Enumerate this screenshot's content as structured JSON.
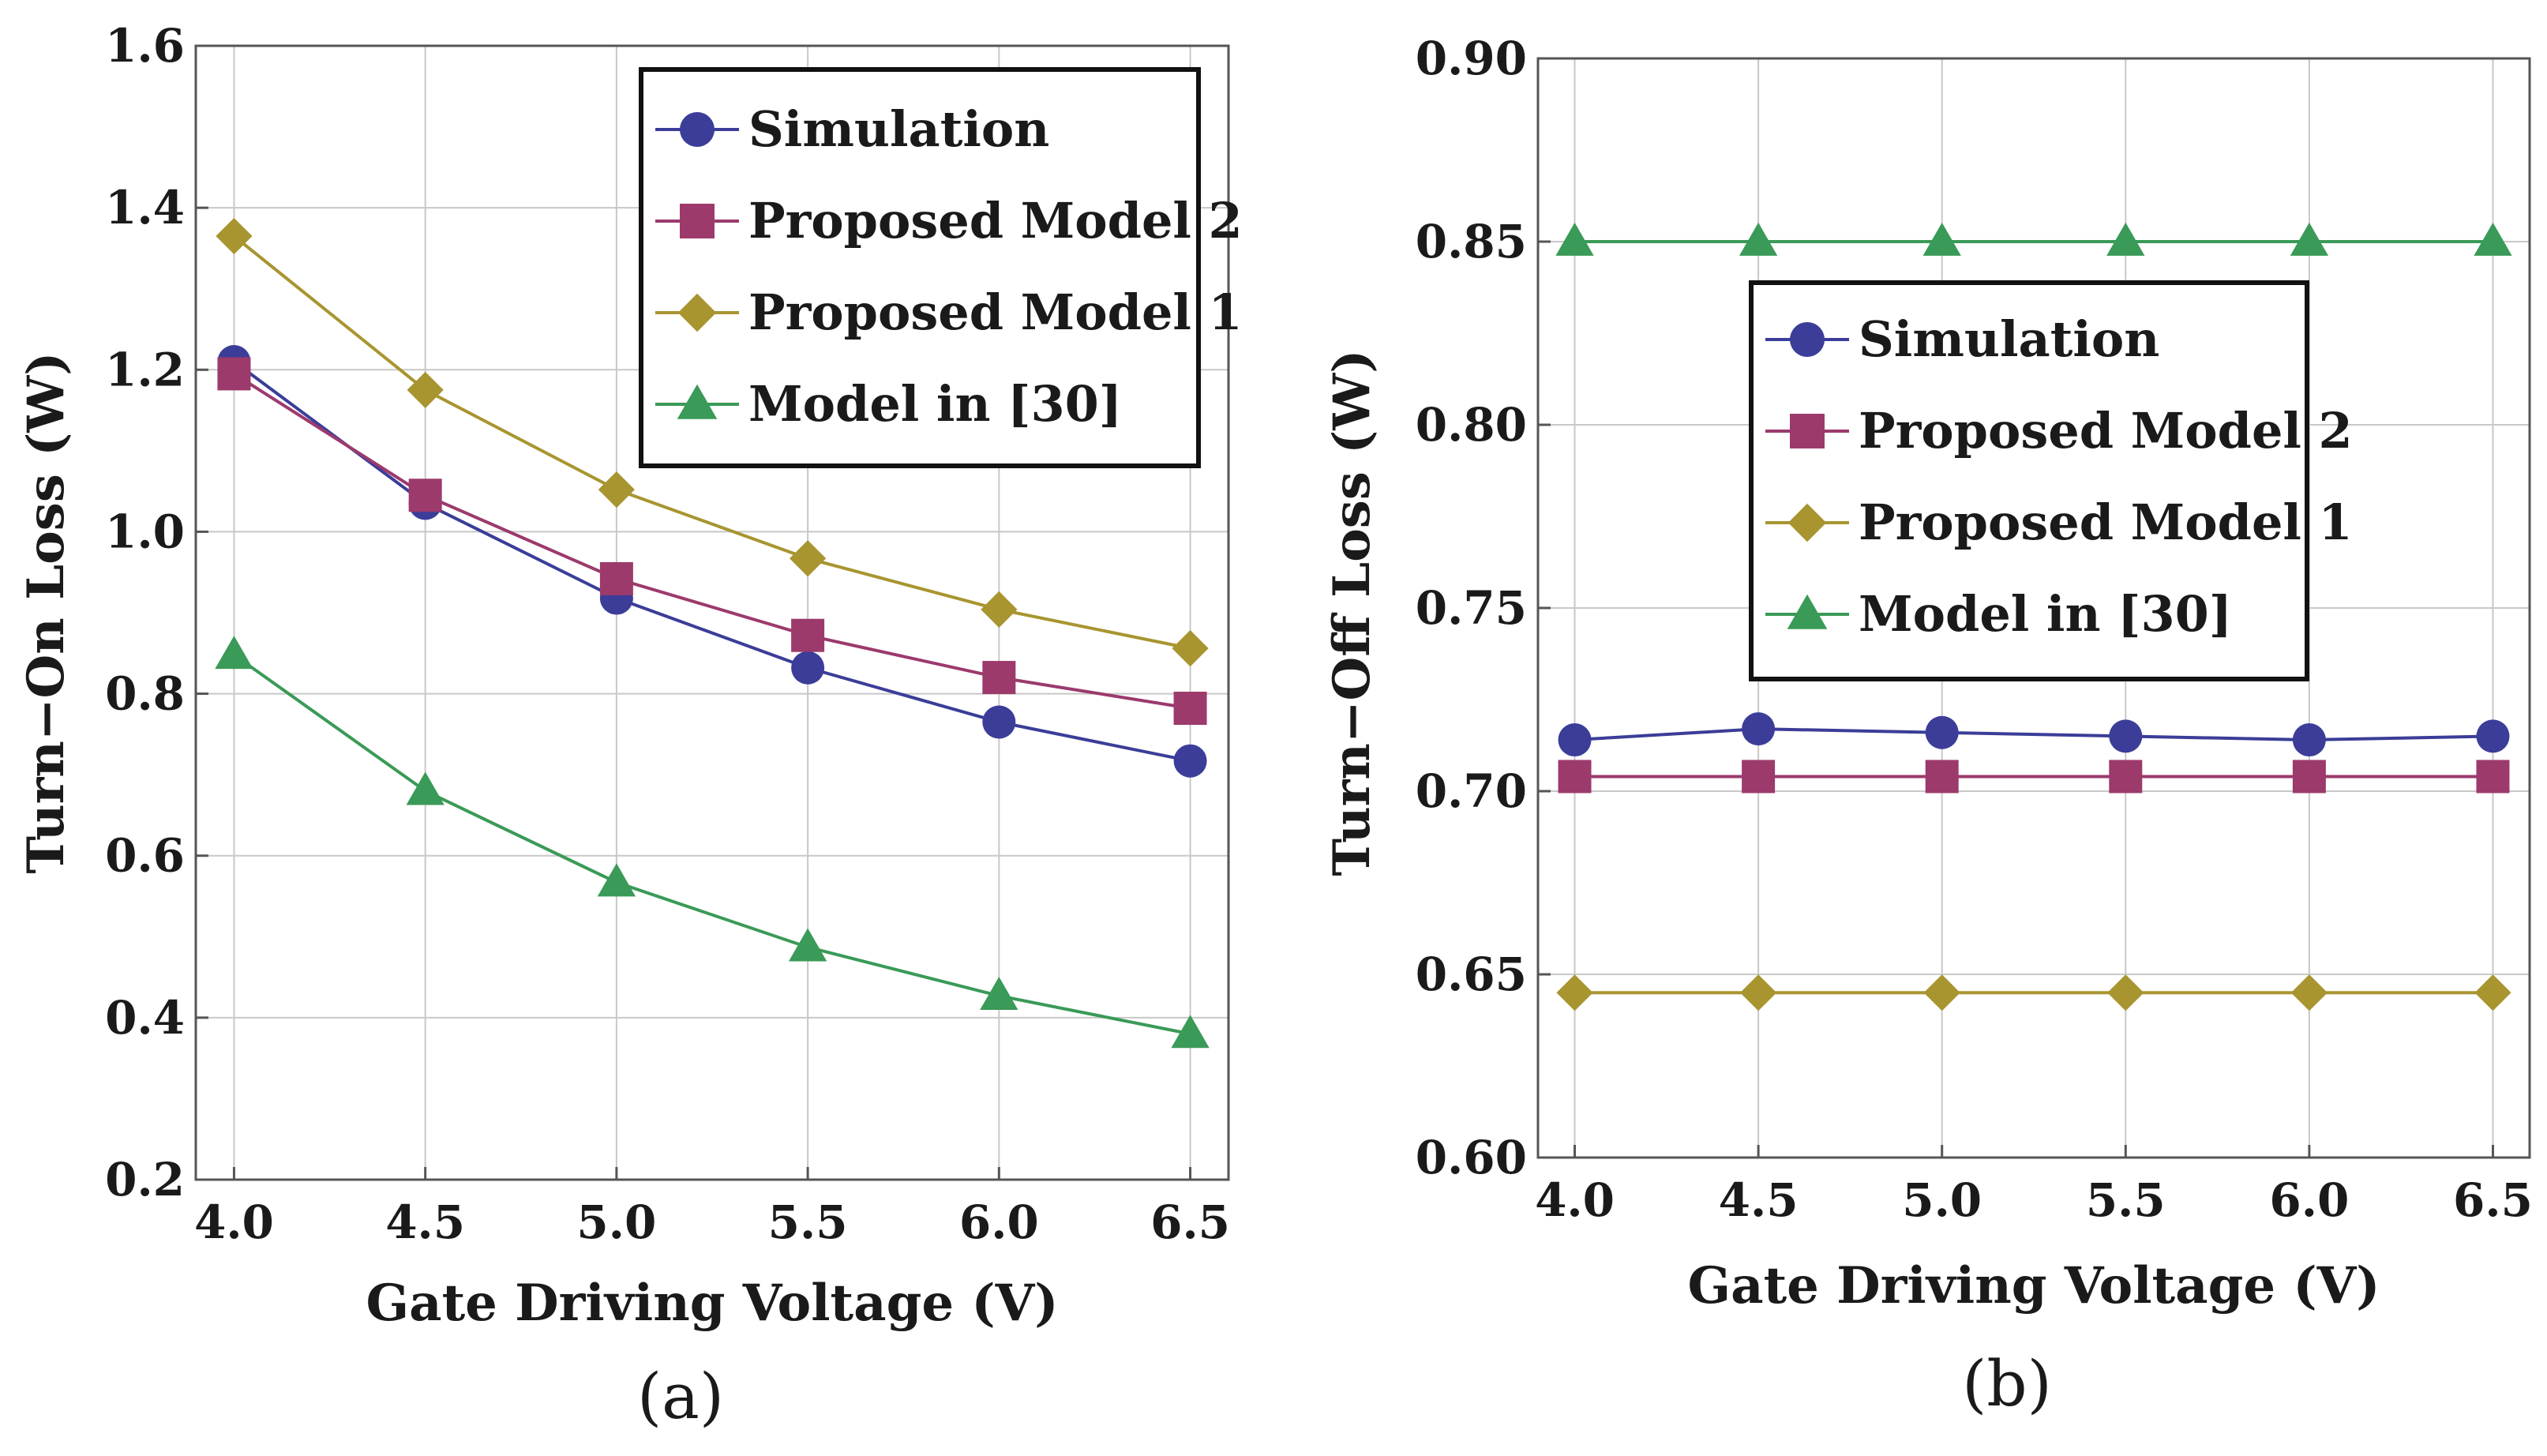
{
  "colors": {
    "simulation": "#3b3d98",
    "model2": "#9c3a6c",
    "model1": "#a89530",
    "model30": "#3a9a57"
  },
  "chart_data": [
    {
      "id": "a",
      "type": "line",
      "caption": "(a)",
      "xlabel": "Gate Driving Voltage (V)",
      "ylabel": "Turn−On Loss (W)",
      "xlim": [
        3.9,
        6.6
      ],
      "ylim": [
        0.2,
        1.6
      ],
      "xticks": [
        4.0,
        4.5,
        5.0,
        5.5,
        6.0,
        6.5
      ],
      "xtick_labels": [
        "4.0",
        "4.5",
        "5.0",
        "5.5",
        "6.0",
        "6.5"
      ],
      "yticks": [
        0.2,
        0.4,
        0.6,
        0.8,
        1.0,
        1.2,
        1.4,
        1.6
      ],
      "ytick_labels": [
        "0.2",
        "0.4",
        "0.6",
        "0.8",
        "1.0",
        "1.2",
        "1.4",
        "1.6"
      ],
      "grid": true,
      "legend_position": "top-right",
      "x": [
        4.0,
        4.5,
        5.0,
        5.5,
        6.0,
        6.5
      ],
      "series": [
        {
          "name": "Simulation",
          "marker": "circle",
          "color_key": "simulation",
          "values": [
            1.21,
            1.035,
            0.918,
            0.832,
            0.765,
            0.717
          ]
        },
        {
          "name": "Proposed Model 2",
          "marker": "square",
          "color_key": "model2",
          "values": [
            1.195,
            1.045,
            0.942,
            0.872,
            0.82,
            0.782
          ]
        },
        {
          "name": "Proposed Model 1",
          "marker": "diamond",
          "color_key": "model1",
          "values": [
            1.365,
            1.175,
            1.052,
            0.967,
            0.904,
            0.856
          ]
        },
        {
          "name": "Model in [30]",
          "marker": "triangle",
          "color_key": "model30",
          "values": [
            0.848,
            0.68,
            0.567,
            0.487,
            0.427,
            0.38
          ]
        }
      ]
    },
    {
      "id": "b",
      "type": "line",
      "caption": "(b)",
      "xlabel": "Gate Driving Voltage (V)",
      "ylabel": "Turn−Off Loss (W)",
      "xlim": [
        3.9,
        6.6
      ],
      "ylim": [
        0.6,
        0.9
      ],
      "xticks": [
        4.0,
        4.5,
        5.0,
        5.5,
        6.0,
        6.5
      ],
      "xtick_labels": [
        "4.0",
        "4.5",
        "5.0",
        "5.5",
        "6.0",
        "6.5"
      ],
      "yticks": [
        0.6,
        0.65,
        0.7,
        0.75,
        0.8,
        0.85,
        0.9
      ],
      "ytick_labels": [
        "0.60",
        "0.65",
        "0.70",
        "0.75",
        "0.80",
        "0.85",
        "0.90"
      ],
      "grid": true,
      "legend_position": "center",
      "x": [
        4.0,
        4.5,
        5.0,
        5.5,
        6.0,
        6.5
      ],
      "series": [
        {
          "name": "Simulation",
          "marker": "circle",
          "color_key": "simulation",
          "values": [
            0.714,
            0.717,
            0.716,
            0.715,
            0.714,
            0.715
          ]
        },
        {
          "name": "Proposed Model 2",
          "marker": "square",
          "color_key": "model2",
          "values": [
            0.704,
            0.704,
            0.704,
            0.704,
            0.704,
            0.704
          ]
        },
        {
          "name": "Proposed Model 1",
          "marker": "diamond",
          "color_key": "model1",
          "values": [
            0.645,
            0.645,
            0.645,
            0.645,
            0.645,
            0.645
          ]
        },
        {
          "name": "Model in [30]",
          "marker": "triangle",
          "color_key": "model30",
          "values": [
            0.85,
            0.85,
            0.85,
            0.85,
            0.85,
            0.85
          ]
        }
      ]
    }
  ]
}
